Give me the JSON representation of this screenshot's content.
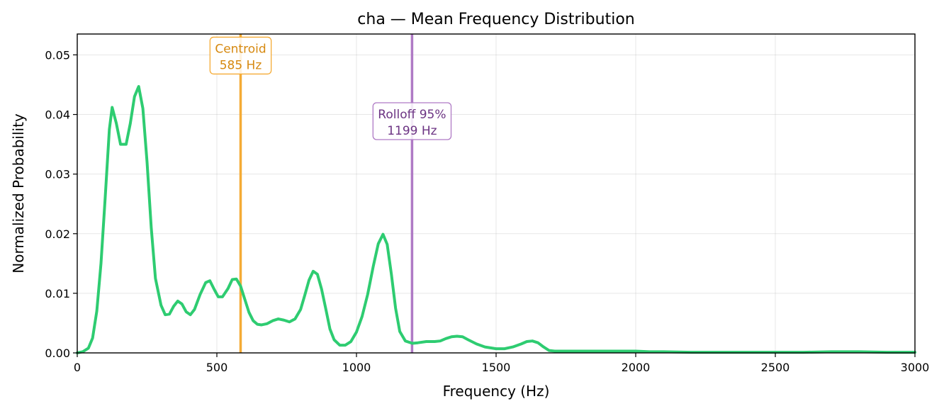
{
  "chart_data": {
    "type": "line",
    "title": "cha  —  Mean Frequency Distribution",
    "xlabel": "Frequency (Hz)",
    "ylabel": "Normalized Probability",
    "xlim": [
      0,
      3000
    ],
    "ylim": [
      0,
      0.0535
    ],
    "grid": true,
    "x_ticks": [
      0,
      500,
      1000,
      1500,
      2000,
      2500,
      3000
    ],
    "x_tick_labels": [
      "0",
      "500",
      "1000",
      "1500",
      "2000",
      "2500",
      "3000"
    ],
    "y_ticks": [
      0,
      0.01,
      0.02,
      0.03,
      0.04,
      0.05
    ],
    "y_tick_labels": [
      "0.00",
      "0.01",
      "0.02",
      "0.03",
      "0.04",
      "0.05"
    ],
    "series": [
      {
        "color": "#2ecc71",
        "x": [
          0,
          20,
          40,
          55,
          70,
          85,
          100,
          115,
          125,
          140,
          155,
          175,
          190,
          205,
          220,
          235,
          250,
          265,
          280,
          300,
          315,
          330,
          345,
          360,
          375,
          390,
          405,
          420,
          440,
          460,
          475,
          490,
          505,
          520,
          540,
          555,
          570,
          585,
          600,
          615,
          630,
          645,
          660,
          680,
          700,
          720,
          740,
          760,
          780,
          800,
          815,
          830,
          845,
          860,
          875,
          890,
          905,
          920,
          940,
          960,
          980,
          1000,
          1020,
          1040,
          1060,
          1078,
          1095,
          1110,
          1125,
          1140,
          1155,
          1175,
          1200,
          1220,
          1250,
          1280,
          1300,
          1320,
          1340,
          1360,
          1380,
          1400,
          1430,
          1460,
          1500,
          1530,
          1560,
          1590,
          1610,
          1630,
          1650,
          1670,
          1690,
          1710,
          1750,
          1800,
          1850,
          1900,
          1950,
          2000,
          2050,
          2100,
          2200,
          2300,
          2400,
          2500,
          2600,
          2700,
          2800,
          2900,
          3000
        ],
        "y": [
          0,
          0.0002,
          0.0008,
          0.0025,
          0.007,
          0.015,
          0.026,
          0.0375,
          0.0412,
          0.0385,
          0.035,
          0.035,
          0.0385,
          0.043,
          0.0447,
          0.041,
          0.032,
          0.021,
          0.0125,
          0.008,
          0.0064,
          0.0065,
          0.0078,
          0.0087,
          0.0082,
          0.0069,
          0.0064,
          0.0073,
          0.0098,
          0.0118,
          0.0121,
          0.0107,
          0.0094,
          0.0094,
          0.0108,
          0.0123,
          0.0124,
          0.0112,
          0.009,
          0.0068,
          0.0054,
          0.0048,
          0.0047,
          0.0049,
          0.0054,
          0.0057,
          0.0055,
          0.0052,
          0.0057,
          0.0073,
          0.0097,
          0.0122,
          0.0137,
          0.0132,
          0.0107,
          0.0074,
          0.004,
          0.0022,
          0.0013,
          0.0013,
          0.0019,
          0.0035,
          0.0061,
          0.0098,
          0.0145,
          0.0183,
          0.0199,
          0.0182,
          0.0132,
          0.0075,
          0.0036,
          0.002,
          0.0016,
          0.0017,
          0.0019,
          0.0019,
          0.002,
          0.0024,
          0.0027,
          0.0028,
          0.0027,
          0.0022,
          0.0015,
          0.001,
          0.0007,
          0.0007,
          0.001,
          0.0015,
          0.0019,
          0.002,
          0.0017,
          0.001,
          0.0004,
          0.0003,
          0.0003,
          0.0003,
          0.0003,
          0.0003,
          0.0003,
          0.0003,
          0.0002,
          0.0002,
          0.0001,
          0.0001,
          0.0001,
          0.0001,
          0.0001,
          0.0002,
          0.0002,
          0.0001,
          0.0001
        ]
      }
    ],
    "annotations": [
      {
        "name": "centroid",
        "x": 585,
        "label_line1": "Centroid",
        "label_line2": "585 Hz",
        "line_color": "#f5ab35",
        "text_color": "#d68910",
        "label_y": 0.05,
        "box_style": "round"
      },
      {
        "name": "rolloff",
        "x": 1199,
        "label_line1": "Rolloff 95%",
        "label_line2": "1199 Hz",
        "line_color": "#af7ac5",
        "text_color": "#6c3483",
        "label_y": 0.039,
        "box_style": "round"
      }
    ]
  }
}
